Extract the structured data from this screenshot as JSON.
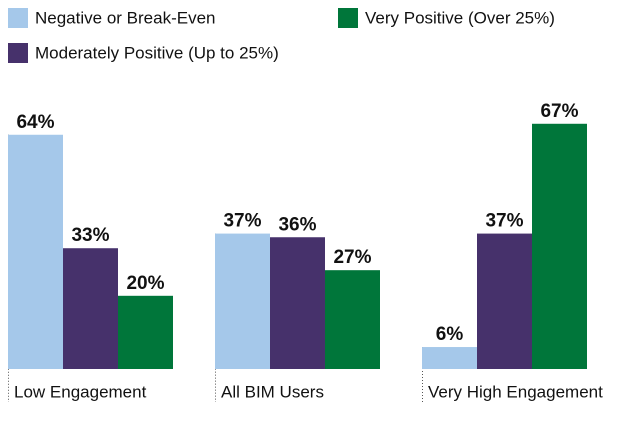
{
  "chart_data": {
    "type": "bar",
    "categories": [
      "Low Engagement",
      "All BIM Users",
      "Very High Engagement"
    ],
    "series": [
      {
        "name": "Negative or Break-Even",
        "color": "#a5c8ea",
        "values": [
          64,
          37,
          6
        ],
        "value_labels": [
          "64%",
          "37%",
          "6%"
        ]
      },
      {
        "name": "Moderately Positive (Up to 25%)",
        "color": "#46316b",
        "values": [
          33,
          36,
          37
        ],
        "value_labels": [
          "33%",
          "36%",
          "37%"
        ]
      },
      {
        "name": "Very Positive (Over 25%)",
        "color": "#00763a",
        "values": [
          20,
          27,
          67
        ],
        "value_labels": [
          "20%",
          "27%",
          "67%"
        ]
      }
    ],
    "ylim": [
      0,
      100
    ]
  }
}
